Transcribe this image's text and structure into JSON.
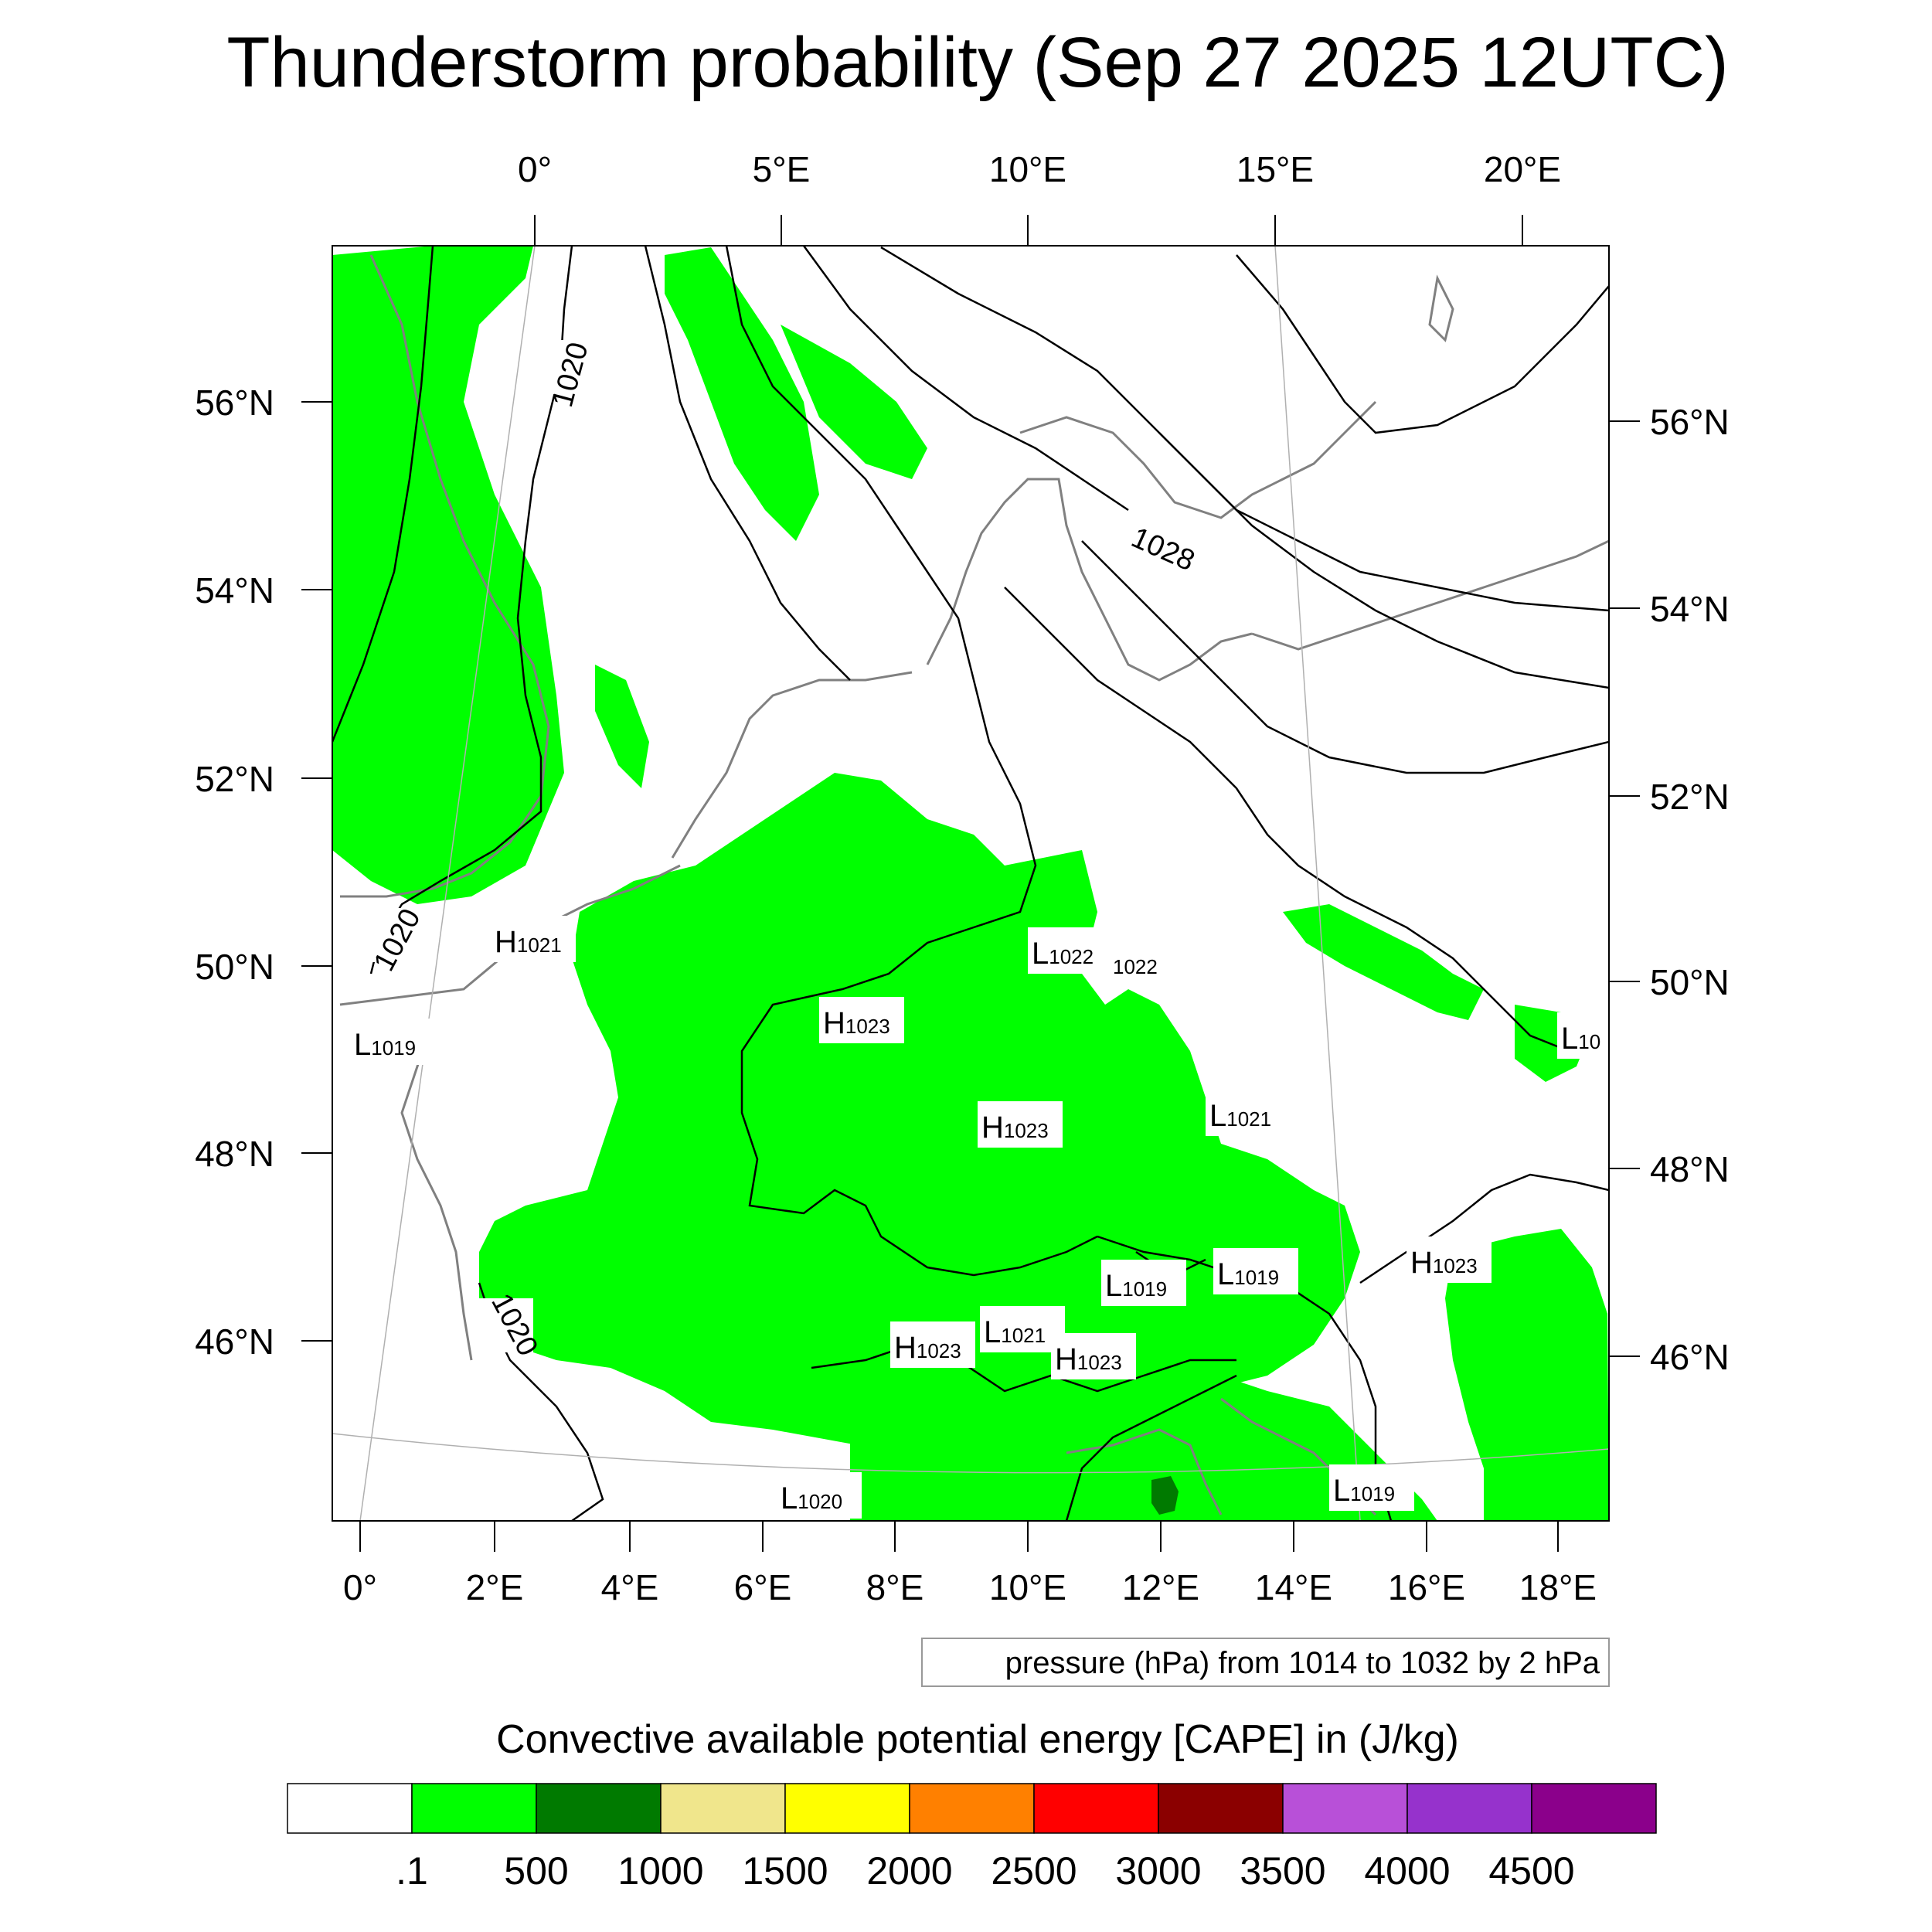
{
  "title": "Thunderstorm probability (Sep 27 2025 12UTC)",
  "top_lon_labels": [
    "0°",
    "5°E",
    "10°E",
    "15°E",
    "20°E"
  ],
  "bottom_lon_labels": [
    "0°",
    "2°E",
    "4°E",
    "6°E",
    "8°E",
    "10°E",
    "12°E",
    "14°E",
    "16°E",
    "18°E"
  ],
  "left_lat_labels": [
    "56°N",
    "54°N",
    "52°N",
    "50°N",
    "48°N",
    "46°N"
  ],
  "right_lat_labels": [
    "56°N",
    "54°N",
    "52°N",
    "50°N",
    "48°N",
    "46°N"
  ],
  "isobar_labels": [
    "1020",
    "1020",
    "1020",
    "1028"
  ],
  "pressure_centers": [
    {
      "type": "H",
      "value": "1021"
    },
    {
      "type": "L",
      "value": "1019"
    },
    {
      "type": "L",
      "value": "1022"
    },
    {
      "type": "",
      "value": "1022"
    },
    {
      "type": "H",
      "value": "1023"
    },
    {
      "type": "H",
      "value": "1023"
    },
    {
      "type": "L",
      "value": "1021"
    },
    {
      "type": "L",
      "value": "1019"
    },
    {
      "type": "L",
      "value": "1019"
    },
    {
      "type": "H",
      "value": "1023"
    },
    {
      "type": "H",
      "value": "1023"
    },
    {
      "type": "L",
      "value": "1021"
    },
    {
      "type": "H",
      "value": "1023"
    },
    {
      "type": "L",
      "value": "1020"
    },
    {
      "type": "L",
      "value": "1019"
    },
    {
      "type": "L",
      "value": "10"
    }
  ],
  "pressure_note": "pressure (hPa) from 1014 to 1032 by 2 hPa",
  "legend": {
    "title": "Convective available potential energy [CAPE] in (J/kg)",
    "colors": [
      "#ffffff",
      "#00ff00",
      "#007a00",
      "#f0e68c",
      "#ffff00",
      "#ff8000",
      "#ff0000",
      "#8b0000",
      "#b850d8",
      "#9632cc",
      "#8b008b"
    ],
    "labels": [
      ".1",
      "500",
      "1000",
      "1500",
      "2000",
      "2500",
      "3000",
      "3500",
      "4000",
      "4500"
    ]
  },
  "colors": {
    "cape_green": "#00ff00",
    "cape_dark_green": "#007a00",
    "coastline": "#808080",
    "isobar": "#000000"
  }
}
